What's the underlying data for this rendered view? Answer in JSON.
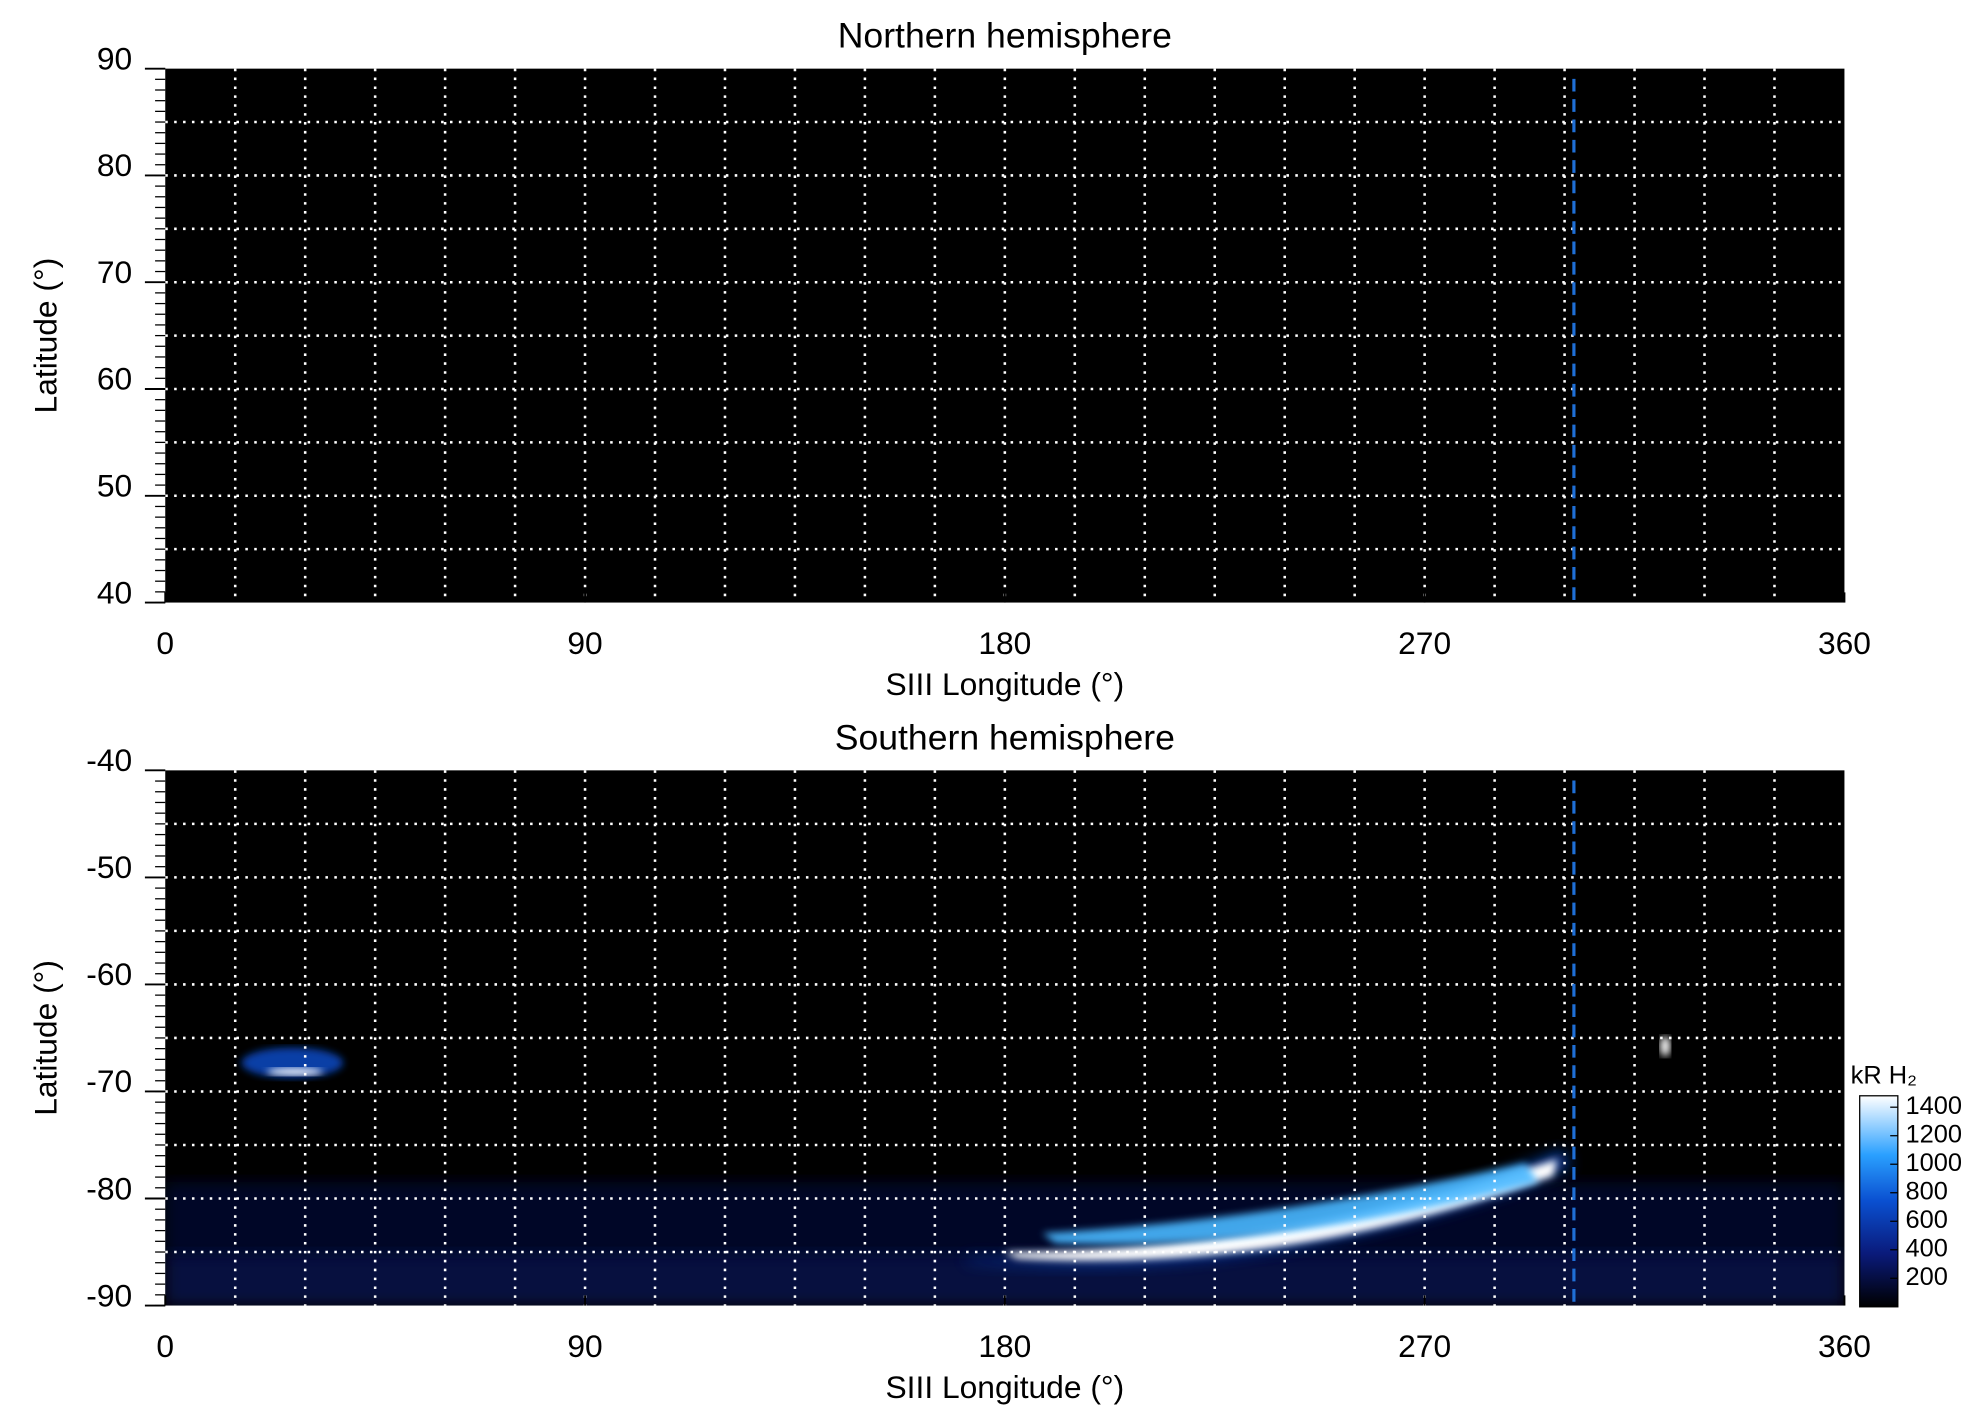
{
  "chart_data": [
    {
      "type": "heatmap",
      "title": "Northern hemisphere",
      "xlabel": "SIII Longitude (°)",
      "ylabel": "Latitude (°)",
      "xlim": [
        0,
        360
      ],
      "xticks": [
        0,
        90,
        180,
        270,
        360
      ],
      "xgrid": [
        15,
        30,
        45,
        60,
        75,
        90,
        105,
        120,
        135,
        150,
        165,
        180,
        195,
        210,
        225,
        240,
        255,
        270,
        285,
        300,
        315,
        330,
        345
      ],
      "ylim": [
        40,
        90
      ],
      "yticks": [
        40,
        50,
        60,
        70,
        80,
        90
      ],
      "ygrid": [
        45,
        50,
        55,
        60,
        65,
        70,
        75,
        80,
        85
      ],
      "vline": 302,
      "vline_color": "#1f6fd6",
      "background": "#000000",
      "grid_color": "#ffffff"
    },
    {
      "type": "heatmap",
      "title": "Southern hemisphere",
      "xlabel": "SIII Longitude (°)",
      "ylabel": "Latitude (°)",
      "xlim": [
        0,
        360
      ],
      "xticks": [
        0,
        90,
        180,
        270,
        360
      ],
      "xgrid": [
        15,
        30,
        45,
        60,
        75,
        90,
        105,
        120,
        135,
        150,
        165,
        180,
        195,
        210,
        225,
        240,
        255,
        270,
        285,
        300,
        315,
        330,
        345
      ],
      "ylim": [
        -90,
        -40
      ],
      "yticks": [
        -90,
        -80,
        -70,
        -60,
        -50,
        -40
      ],
      "ygrid": [
        -85,
        -80,
        -75,
        -70,
        -65,
        -60,
        -55,
        -50,
        -45
      ],
      "vline": 302,
      "vline_color": "#1f6fd6",
      "background": "#000000",
      "grid_color": "#ffffff",
      "colorbar": {
        "label": "kR H₂",
        "lim": [
          0,
          1480
        ],
        "ticks": [
          200,
          400,
          600,
          800,
          1000,
          1200,
          1400
        ]
      }
    }
  ]
}
